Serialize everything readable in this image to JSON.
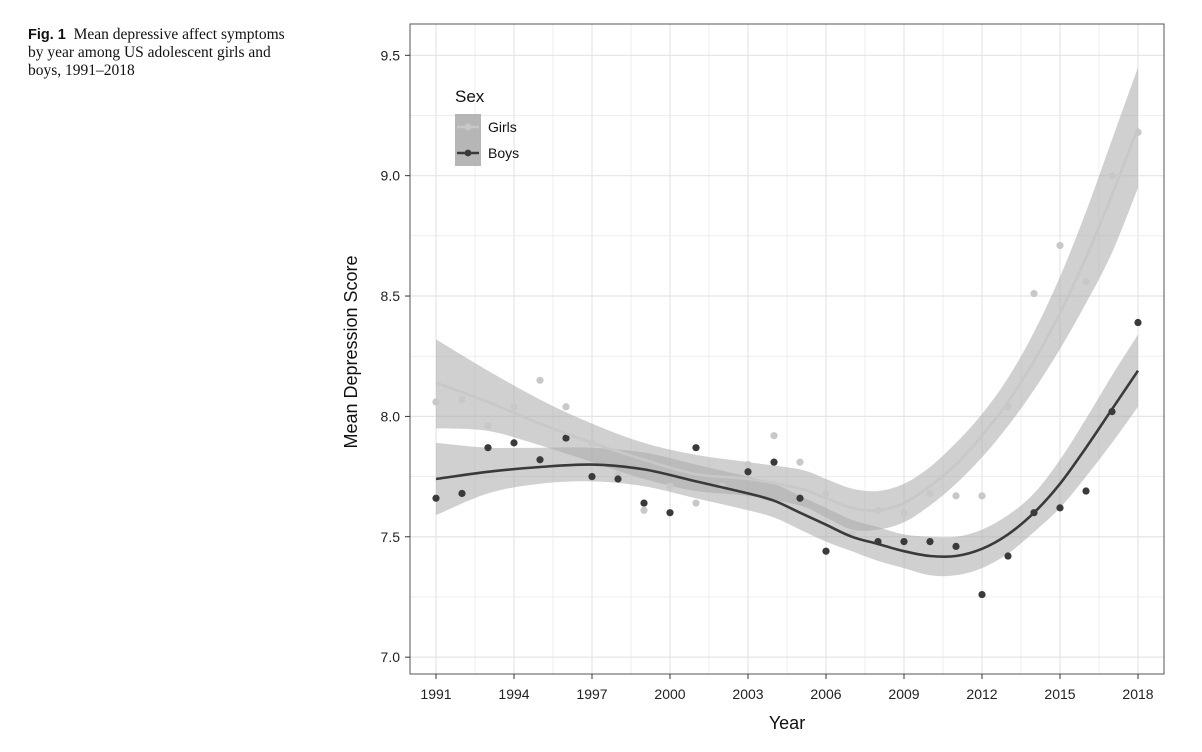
{
  "caption": {
    "label": "Fig. 1",
    "text": "Mean depressive affect symptoms by year among US adolescent girls and boys, 1991–2018"
  },
  "chart_data": {
    "type": "scatter",
    "xlabel": "Year",
    "ylabel": "Mean Depression Score",
    "xlim": [
      1990,
      2019
    ],
    "ylim": [
      6.93,
      9.63
    ],
    "x_ticks": [
      1991,
      1994,
      1997,
      2000,
      2003,
      2006,
      2009,
      2012,
      2015,
      2018
    ],
    "y_ticks": [
      7.0,
      7.5,
      8.0,
      8.5,
      9.0,
      9.5
    ],
    "y_tick_labels": [
      "7.0",
      "7.5",
      "8.0",
      "8.5",
      "9.0",
      "9.5"
    ],
    "grid": true,
    "legend": {
      "title": "Sex",
      "position": "top-left"
    },
    "colors": {
      "girls": "#c8c8c8",
      "boys": "#3a3a3a",
      "band": "#a9a9a9",
      "grid": "#e5e5e5"
    },
    "series": [
      {
        "name": "Girls",
        "points": [
          {
            "x": 1991,
            "y": 8.06
          },
          {
            "x": 1992,
            "y": 8.07
          },
          {
            "x": 1993,
            "y": 7.96
          },
          {
            "x": 1994,
            "y": 8.04
          },
          {
            "x": 1995,
            "y": 8.15
          },
          {
            "x": 1996,
            "y": 8.04
          },
          {
            "x": 1997,
            "y": 7.89
          },
          {
            "x": 1998,
            "y": 7.76
          },
          {
            "x": 1999,
            "y": 7.61
          },
          {
            "x": 2000,
            "y": 7.71
          },
          {
            "x": 2001,
            "y": 7.64
          },
          {
            "x": 2002,
            "y": 7.71
          },
          {
            "x": 2003,
            "y": 7.8
          },
          {
            "x": 2004,
            "y": 7.92
          },
          {
            "x": 2005,
            "y": 7.81
          },
          {
            "x": 2006,
            "y": 7.68
          },
          {
            "x": 2007,
            "y": 7.51
          },
          {
            "x": 2008,
            "y": 7.61
          },
          {
            "x": 2009,
            "y": 7.6
          },
          {
            "x": 2010,
            "y": 7.68
          },
          {
            "x": 2011,
            "y": 7.67
          },
          {
            "x": 2012,
            "y": 7.67
          },
          {
            "x": 2013,
            "y": 8.04
          },
          {
            "x": 2014,
            "y": 8.51
          },
          {
            "x": 2015,
            "y": 8.71
          },
          {
            "x": 2016,
            "y": 8.56
          },
          {
            "x": 2017,
            "y": 9.0
          },
          {
            "x": 2018,
            "y": 9.18
          }
        ],
        "fit": [
          {
            "x": 1991,
            "y": 8.14,
            "lo": 7.95,
            "hi": 8.32
          },
          {
            "x": 1993,
            "y": 8.06,
            "lo": 7.94,
            "hi": 8.19
          },
          {
            "x": 1995,
            "y": 7.97,
            "lo": 7.88,
            "hi": 8.07
          },
          {
            "x": 1997,
            "y": 7.89,
            "lo": 7.81,
            "hi": 7.97
          },
          {
            "x": 1999,
            "y": 7.82,
            "lo": 7.74,
            "hi": 7.89
          },
          {
            "x": 2001,
            "y": 7.76,
            "lo": 7.69,
            "hi": 7.84
          },
          {
            "x": 2003,
            "y": 7.74,
            "lo": 7.67,
            "hi": 7.81
          },
          {
            "x": 2005,
            "y": 7.7,
            "lo": 7.63,
            "hi": 7.78
          },
          {
            "x": 2006,
            "y": 7.66,
            "lo": 7.58,
            "hi": 7.74
          },
          {
            "x": 2007,
            "y": 7.62,
            "lo": 7.53,
            "hi": 7.7
          },
          {
            "x": 2008,
            "y": 7.61,
            "lo": 7.53,
            "hi": 7.69
          },
          {
            "x": 2009,
            "y": 7.64,
            "lo": 7.56,
            "hi": 7.72
          },
          {
            "x": 2010,
            "y": 7.71,
            "lo": 7.63,
            "hi": 7.79
          },
          {
            "x": 2011,
            "y": 7.8,
            "lo": 7.72,
            "hi": 7.89
          },
          {
            "x": 2012,
            "y": 7.92,
            "lo": 7.83,
            "hi": 8.01
          },
          {
            "x": 2013,
            "y": 8.06,
            "lo": 7.96,
            "hi": 8.16
          },
          {
            "x": 2014,
            "y": 8.23,
            "lo": 8.11,
            "hi": 8.35
          },
          {
            "x": 2015,
            "y": 8.43,
            "lo": 8.28,
            "hi": 8.58
          },
          {
            "x": 2016,
            "y": 8.66,
            "lo": 8.47,
            "hi": 8.85
          },
          {
            "x": 2017,
            "y": 8.92,
            "lo": 8.68,
            "hi": 9.15
          },
          {
            "x": 2018,
            "y": 9.2,
            "lo": 8.95,
            "hi": 9.45
          }
        ]
      },
      {
        "name": "Boys",
        "points": [
          {
            "x": 1991,
            "y": 7.66
          },
          {
            "x": 1992,
            "y": 7.68
          },
          {
            "x": 1993,
            "y": 7.87
          },
          {
            "x": 1994,
            "y": 7.89
          },
          {
            "x": 1995,
            "y": 7.82
          },
          {
            "x": 1996,
            "y": 7.91
          },
          {
            "x": 1997,
            "y": 7.75
          },
          {
            "x": 1998,
            "y": 7.74
          },
          {
            "x": 1999,
            "y": 7.64
          },
          {
            "x": 2000,
            "y": 7.6
          },
          {
            "x": 2001,
            "y": 7.87
          },
          {
            "x": 2003,
            "y": 7.77
          },
          {
            "x": 2004,
            "y": 7.81
          },
          {
            "x": 2005,
            "y": 7.66
          },
          {
            "x": 2006,
            "y": 7.44
          },
          {
            "x": 2008,
            "y": 7.48
          },
          {
            "x": 2009,
            "y": 7.48
          },
          {
            "x": 2010,
            "y": 7.48
          },
          {
            "x": 2011,
            "y": 7.46
          },
          {
            "x": 2012,
            "y": 7.26
          },
          {
            "x": 2013,
            "y": 7.42
          },
          {
            "x": 2014,
            "y": 7.6
          },
          {
            "x": 2015,
            "y": 7.62
          },
          {
            "x": 2016,
            "y": 7.69
          },
          {
            "x": 2017,
            "y": 8.02
          },
          {
            "x": 2018,
            "y": 8.39
          }
        ],
        "fit": [
          {
            "x": 1991,
            "y": 7.74,
            "lo": 7.59,
            "hi": 7.89
          },
          {
            "x": 1993,
            "y": 7.77,
            "lo": 7.68,
            "hi": 7.87
          },
          {
            "x": 1995,
            "y": 7.79,
            "lo": 7.72,
            "hi": 7.87
          },
          {
            "x": 1997,
            "y": 7.8,
            "lo": 7.73,
            "hi": 7.87
          },
          {
            "x": 1999,
            "y": 7.78,
            "lo": 7.71,
            "hi": 7.85
          },
          {
            "x": 2001,
            "y": 7.73,
            "lo": 7.66,
            "hi": 7.8
          },
          {
            "x": 2003,
            "y": 7.68,
            "lo": 7.61,
            "hi": 7.75
          },
          {
            "x": 2004,
            "y": 7.65,
            "lo": 7.58,
            "hi": 7.72
          },
          {
            "x": 2005,
            "y": 7.6,
            "lo": 7.53,
            "hi": 7.67
          },
          {
            "x": 2006,
            "y": 7.55,
            "lo": 7.48,
            "hi": 7.62
          },
          {
            "x": 2007,
            "y": 7.5,
            "lo": 7.44,
            "hi": 7.57
          },
          {
            "x": 2008,
            "y": 7.47,
            "lo": 7.4,
            "hi": 7.54
          },
          {
            "x": 2009,
            "y": 7.44,
            "lo": 7.37,
            "hi": 7.51
          },
          {
            "x": 2010,
            "y": 7.42,
            "lo": 7.34,
            "hi": 7.5
          },
          {
            "x": 2011,
            "y": 7.42,
            "lo": 7.34,
            "hi": 7.5
          },
          {
            "x": 2012,
            "y": 7.45,
            "lo": 7.37,
            "hi": 7.53
          },
          {
            "x": 2013,
            "y": 7.51,
            "lo": 7.43,
            "hi": 7.59
          },
          {
            "x": 2014,
            "y": 7.6,
            "lo": 7.52,
            "hi": 7.68
          },
          {
            "x": 2015,
            "y": 7.72,
            "lo": 7.62,
            "hi": 7.82
          },
          {
            "x": 2016,
            "y": 7.87,
            "lo": 7.75,
            "hi": 7.99
          },
          {
            "x": 2017,
            "y": 8.03,
            "lo": 7.89,
            "hi": 8.17
          },
          {
            "x": 2018,
            "y": 8.19,
            "lo": 8.04,
            "hi": 8.34
          }
        ]
      }
    ]
  }
}
